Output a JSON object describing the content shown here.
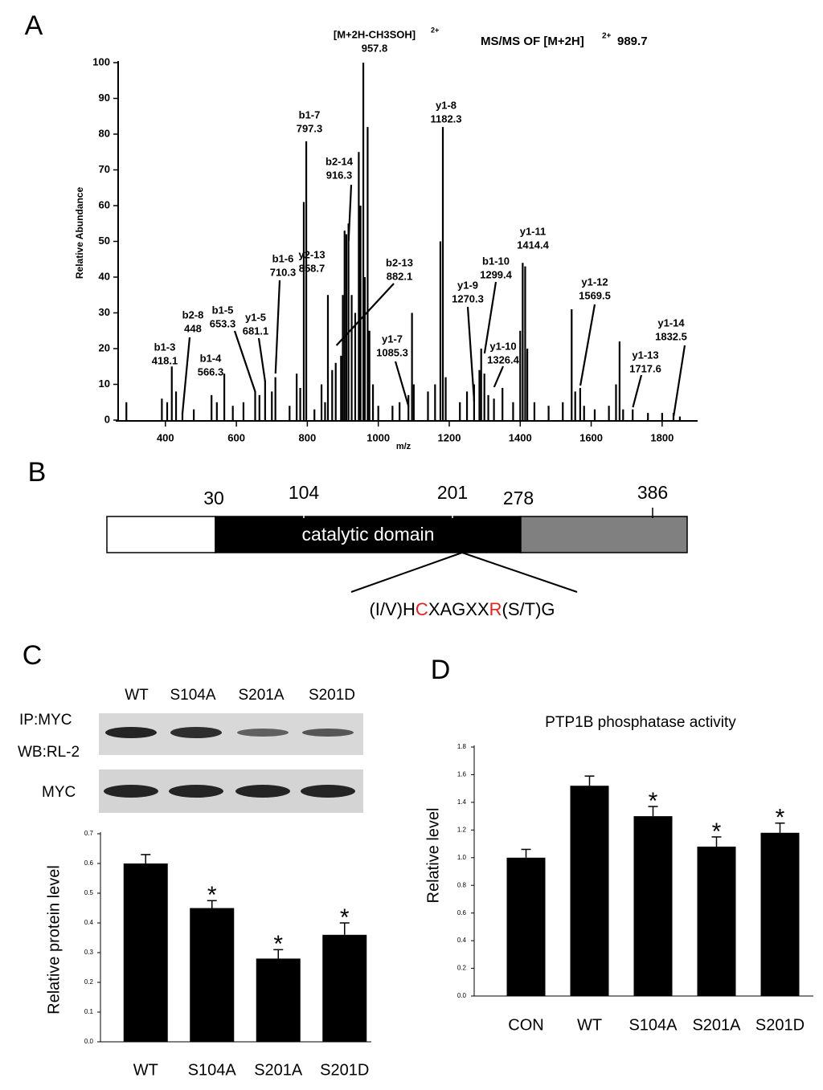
{
  "panel_labels": [
    "A",
    "B",
    "C",
    "D"
  ],
  "chart_data": [
    {
      "type": "stem",
      "title": "MS/MS OF [M+2H]",
      "title_superscript": "2+",
      "precursor": 989.7,
      "xlabel": "m/z",
      "ylabel": "Relative Abundance",
      "xlim": [
        260,
        1900
      ],
      "xticks": [
        400,
        600,
        800,
        1000,
        1200,
        1400,
        1600,
        1800
      ],
      "ylim": [
        0,
        100
      ],
      "yticks": [
        0,
        10,
        20,
        30,
        40,
        50,
        60,
        70,
        80,
        90,
        100
      ],
      "color": "#000000",
      "x": [
        290,
        390,
        405,
        418,
        430,
        448,
        480,
        530,
        545,
        566,
        590,
        620,
        653,
        665,
        681,
        700,
        710,
        750,
        770,
        780,
        790,
        797,
        820,
        840,
        850,
        858,
        870,
        880,
        895,
        900,
        905,
        910,
        916,
        925,
        935,
        945,
        950,
        957.8,
        962,
        970,
        975,
        985,
        1000,
        1040,
        1060,
        1085,
        1095,
        1100,
        1140,
        1160,
        1175,
        1182,
        1190,
        1230,
        1250,
        1270,
        1285,
        1290,
        1299,
        1310,
        1326,
        1350,
        1380,
        1400,
        1407,
        1414,
        1420,
        1440,
        1480,
        1520,
        1545,
        1555,
        1569,
        1580,
        1610,
        1650,
        1670,
        1680,
        1690,
        1717,
        1760,
        1800,
        1832,
        1850
      ],
      "values": [
        5,
        6,
        5,
        15,
        8,
        2,
        3,
        7,
        5,
        13,
        4,
        5,
        8,
        7,
        11,
        8,
        12,
        4,
        13,
        9,
        61,
        78,
        3,
        10,
        5,
        35,
        14,
        16,
        18,
        35,
        53,
        52,
        55,
        35,
        30,
        75,
        60,
        100,
        40,
        82,
        25,
        10,
        4,
        4,
        5,
        7,
        30,
        10,
        8,
        10,
        50,
        82,
        12,
        5,
        8,
        10,
        14,
        20,
        13,
        7,
        6,
        9,
        5,
        25,
        44,
        43,
        20,
        5,
        4,
        5,
        31,
        8,
        9,
        4,
        3,
        4,
        10,
        22,
        3,
        3,
        2,
        2,
        2,
        1
      ],
      "annotations": [
        {
          "ion": "b1-3",
          "mz": 418.1
        },
        {
          "ion": "b2-8",
          "mz": 448
        },
        {
          "ion": "b1-4",
          "mz": 566.3
        },
        {
          "ion": "b1-5",
          "mz": 653.3
        },
        {
          "ion": "y1-5",
          "mz": 681.1
        },
        {
          "ion": "b1-6",
          "mz": 710.3
        },
        {
          "ion": "b1-7",
          "mz": 797.3
        },
        {
          "ion": "b2-14",
          "mz": 916.3
        },
        {
          "ion": "y2-13",
          "mz": 858.7
        },
        {
          "ion": "b2-13",
          "mz": 882.1
        },
        {
          "ion": "[M+2H-CH3SOH]",
          "charge": "2+",
          "mz": 957.8
        },
        {
          "ion": "y1-7",
          "mz": 1085.3
        },
        {
          "ion": "y1-8",
          "mz": 1182.3
        },
        {
          "ion": "y1-9",
          "mz": 1270.3
        },
        {
          "ion": "b1-10",
          "mz": 1299.4
        },
        {
          "ion": "y1-10",
          "mz": 1326.4
        },
        {
          "ion": "y1-11",
          "mz": 1414.4
        },
        {
          "ion": "y1-12",
          "mz": 1569.5
        },
        {
          "ion": "y1-13",
          "mz": 1717.6
        },
        {
          "ion": "y1-14",
          "mz": 1832.5
        }
      ]
    },
    {
      "type": "bar",
      "ylabel": "Relative protein level",
      "categories": [
        "WT",
        "S104A",
        "S201A",
        "S201D"
      ],
      "values": [
        0.6,
        0.45,
        0.28,
        0.36
      ],
      "errors": [
        0.03,
        0.025,
        0.03,
        0.04
      ],
      "stars": [
        null,
        "*",
        "*",
        "*"
      ],
      "color": "#000000",
      "ylim": [
        0,
        0.7
      ],
      "yticks": [
        {
          "value": 0,
          "label": "0.0"
        },
        0.1,
        0.2,
        0.3,
        0.4,
        0.5,
        0.6,
        0.7
      ]
    },
    {
      "type": "bar",
      "title": "PTP1B phosphatase activity",
      "ylabel": "Relative level",
      "categories": [
        "CON",
        "WT",
        "S104A",
        "S201A",
        "S201D"
      ],
      "values": [
        1.0,
        1.52,
        1.3,
        1.08,
        1.18
      ],
      "errors": [
        0.06,
        0.07,
        0.07,
        0.07,
        0.07
      ],
      "stars": [
        null,
        null,
        "*",
        "*",
        "*"
      ],
      "color": "#000000",
      "ylim": [
        0,
        1.8
      ],
      "yticks": [
        {
          "value": 0,
          "label": "0.0"
        },
        0.2,
        0.4,
        0.6,
        0.8,
        {
          "value": 1,
          "label": "1.0"
        },
        1.2,
        1.4,
        1.6,
        1.8
      ]
    }
  ],
  "domain_map": {
    "residue_labels": [
      30,
      104,
      201,
      278,
      386
    ],
    "domain_label": "catalytic domain",
    "motif_parts": [
      "(I/V)H",
      "C",
      "XAGXX",
      "R",
      "(S/T)G"
    ],
    "highlight_parts": [
      1,
      3
    ],
    "highlight_color": "#e8201c"
  },
  "blot": {
    "lanes": [
      "WT",
      "S104A",
      "S201A",
      "S201D"
    ],
    "rows": [
      "IP:MYC",
      "WB:RL-2",
      "MYC"
    ]
  }
}
